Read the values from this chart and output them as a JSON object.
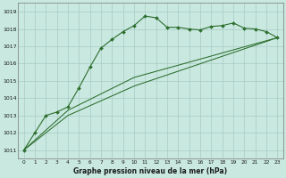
{
  "title": "Graphe pression niveau de la mer (hPa)",
  "bg_color": "#c8e8e0",
  "grid_color": "#a8ccc4",
  "line_color": "#2d6e2d",
  "marker_color": "#2d6e2d",
  "xlim": [
    -0.5,
    23.5
  ],
  "ylim": [
    1010.5,
    1019.5
  ],
  "xticks": [
    0,
    1,
    2,
    3,
    4,
    5,
    6,
    7,
    8,
    9,
    10,
    11,
    12,
    13,
    14,
    15,
    16,
    17,
    18,
    19,
    20,
    21,
    22,
    23
  ],
  "yticks": [
    1011,
    1012,
    1013,
    1014,
    1015,
    1016,
    1017,
    1018,
    1019
  ],
  "series1_x": [
    0,
    1,
    2,
    3,
    4,
    5,
    6,
    7,
    8,
    9,
    10,
    11,
    12,
    13,
    14,
    15,
    16,
    17,
    18,
    19,
    20,
    21,
    22,
    23
  ],
  "series1_y": [
    1011.0,
    1012.0,
    1013.0,
    1013.2,
    1013.5,
    1014.6,
    1015.8,
    1016.9,
    1017.4,
    1017.85,
    1018.2,
    1018.75,
    1018.65,
    1018.1,
    1018.1,
    1018.0,
    1017.95,
    1018.15,
    1018.2,
    1018.35,
    1018.05,
    1018.0,
    1017.85,
    1017.5
  ],
  "series2_x": [
    0,
    4,
    10,
    23
  ],
  "series2_y": [
    1011.0,
    1013.3,
    1015.2,
    1017.5
  ],
  "series3_x": [
    0,
    4,
    10,
    23
  ],
  "series3_y": [
    1011.0,
    1013.0,
    1014.7,
    1017.5
  ]
}
